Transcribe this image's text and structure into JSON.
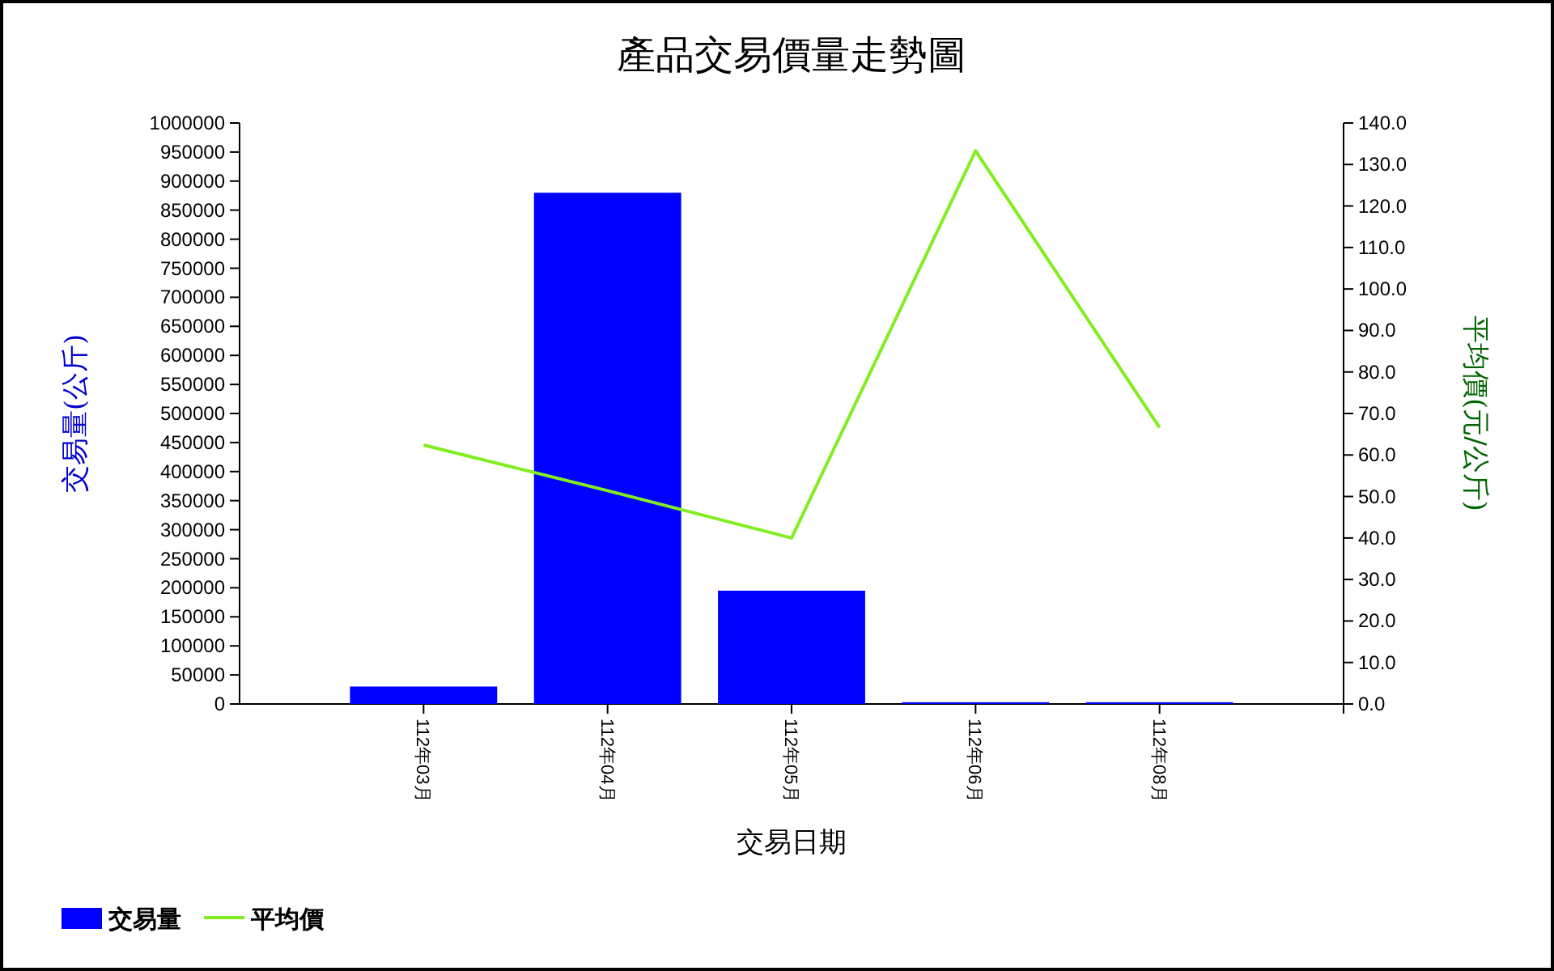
{
  "chart_data": {
    "type": "bar",
    "title": "產品交易價量走勢圖",
    "xlabel": "交易日期",
    "ylabel": "交易量(公斤)",
    "y2label": "平均價(元/公斤)",
    "categories": [
      "112年03月",
      "112年04月",
      "112年05月",
      "112年06月",
      "112年08月"
    ],
    "series": [
      {
        "name": "交易量",
        "color": "#0000ff",
        "values": [
          30000,
          880000,
          195000,
          3000,
          3000
        ]
      },
      {
        "name": "平均價",
        "type": "line",
        "axis": "y2",
        "color": "#80ee20",
        "values": [
          62.4,
          51.4,
          40.0,
          133.3,
          66.6
        ]
      }
    ],
    "ylim": [
      0,
      1000000
    ],
    "yticks": [
      0,
      50000,
      100000,
      150000,
      200000,
      250000,
      300000,
      350000,
      400000,
      450000,
      500000,
      550000,
      600000,
      650000,
      700000,
      750000,
      800000,
      850000,
      900000,
      950000,
      1000000
    ],
    "y2lim": [
      0,
      140
    ],
    "y2ticks": [
      {
        "value": 0,
        "label": "0.0"
      },
      {
        "value": 10,
        "label": "10.0"
      },
      {
        "value": 20,
        "label": "20.0"
      },
      {
        "value": 30,
        "label": "30.0"
      },
      {
        "value": 40,
        "label": "40.0"
      },
      {
        "value": 50,
        "label": "50.0"
      },
      {
        "value": 60,
        "label": "60.0"
      },
      {
        "value": 70,
        "label": "70.0"
      },
      {
        "value": 80,
        "label": "80.0"
      },
      {
        "value": 90,
        "label": "90.0"
      },
      {
        "value": 100,
        "label": "100.0"
      },
      {
        "value": 110,
        "label": "110.0"
      },
      {
        "value": 120,
        "label": "120.0"
      },
      {
        "value": 130,
        "label": "130.0"
      },
      {
        "value": 140,
        "label": "140.0"
      }
    ],
    "grid": false,
    "legend": "bottom left"
  }
}
